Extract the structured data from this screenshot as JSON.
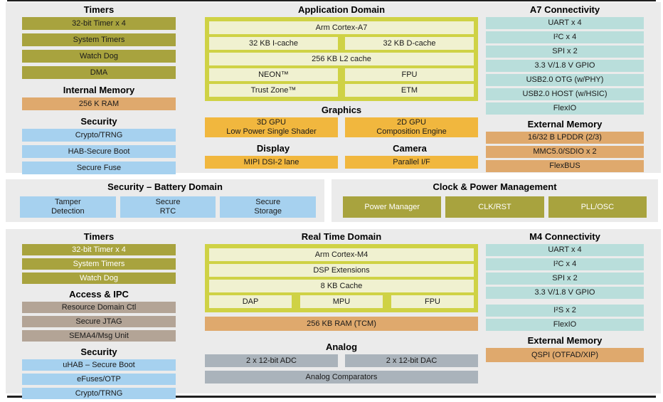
{
  "palette": {
    "section_bg": "#ebebeb",
    "olive": "#a8a33e",
    "pale": "#f0f1d0",
    "lime": "#cfd245",
    "amber": "#f1b73e",
    "tan": "#dfa96d",
    "blue": "#a6d1ef",
    "teal": "#b9dedb",
    "taupe": "#b3a496",
    "gray": "#aab3bb"
  },
  "top": {
    "timers": {
      "title": "Timers",
      "items": [
        "32-bit Timer x 4",
        "System Timers",
        "Watch Dog",
        "DMA"
      ]
    },
    "internal_memory": {
      "title": "Internal Memory",
      "items": [
        "256 K RAM"
      ]
    },
    "security": {
      "title": "Security",
      "items": [
        "Crypto/TRNG",
        "HAB-Secure Boot",
        "Secure Fuse"
      ]
    },
    "application_domain": {
      "title": "Application Domain",
      "cpu": "Arm Cortex-A7",
      "icache": "32 KB I-cache",
      "dcache": "32 KB D-cache",
      "l2cache": "256 KB L2 cache",
      "neon": "NEON™",
      "fpu": "FPU",
      "trustzone": "Trust Zone™",
      "etm": "ETM"
    },
    "graphics": {
      "title": "Graphics",
      "gpu3d": "3D GPU\nLow Power Single Shader",
      "gpu2d": "2D GPU\nComposition Engine"
    },
    "display": {
      "title": "Display",
      "item": "MIPI DSI-2 lane"
    },
    "camera": {
      "title": "Camera",
      "item": "Parallel I/F"
    },
    "a7_connectivity": {
      "title": "A7 Connectivity",
      "items": [
        "UART x 4",
        "I²C x 4",
        "SPI x 2",
        "3.3 V/1.8 V GPIO",
        "USB2.0 OTG (w/PHY)",
        "USB2.0 HOST (w/HSIC)",
        "FlexIO"
      ]
    },
    "external_memory": {
      "title": "External Memory",
      "items": [
        "16/32 B LPDDR (2/3)",
        "MMC5.0/SDIO x 2",
        "FlexBUS"
      ]
    }
  },
  "middle": {
    "security_battery": {
      "title": "Security – Battery Domain",
      "items": [
        "Tamper\nDetection",
        "Secure\nRTC",
        "Secure\nStorage"
      ]
    },
    "clock_power": {
      "title": "Clock & Power Management",
      "items": [
        "Power Manager",
        "CLK/RST",
        "PLL/OSC"
      ]
    }
  },
  "bottom": {
    "timers": {
      "title": "Timers",
      "items": [
        "32-bit Timer x 4",
        "System Timers",
        "Watch Dog"
      ]
    },
    "access_ipc": {
      "title": "Access & IPC",
      "items": [
        "Resource Domain Ctl",
        "Secure JTAG",
        "SEMA4/Msg Unit"
      ]
    },
    "security": {
      "title": "Security",
      "items": [
        "uHAB – Secure Boot",
        "eFuses/OTP",
        "Crypto/TRNG"
      ]
    },
    "realtime_domain": {
      "title": "Real Time Domain",
      "cpu": "Arm Cortex-M4",
      "dsp": "DSP Extensions",
      "cache": "8 KB Cache",
      "dap": "DAP",
      "mpu": "MPU",
      "fpu": "FPU"
    },
    "ram": "256 KB RAM (TCM)",
    "analog": {
      "title": "Analog",
      "adc": "2 x 12-bit ADC",
      "dac": "2 x 12-bit DAC",
      "comparators": "Analog Comparators"
    },
    "m4_connectivity": {
      "title": "M4 Connectivity",
      "items": [
        "UART x 4",
        "I²C x 4",
        "SPI x 2",
        "3.3 V/1.8 V GPIO",
        "I²S x 2",
        "FlexIO"
      ]
    },
    "external_memory": {
      "title": "External Memory",
      "items": [
        "QSPI (OTFAD/XIP)"
      ]
    }
  }
}
